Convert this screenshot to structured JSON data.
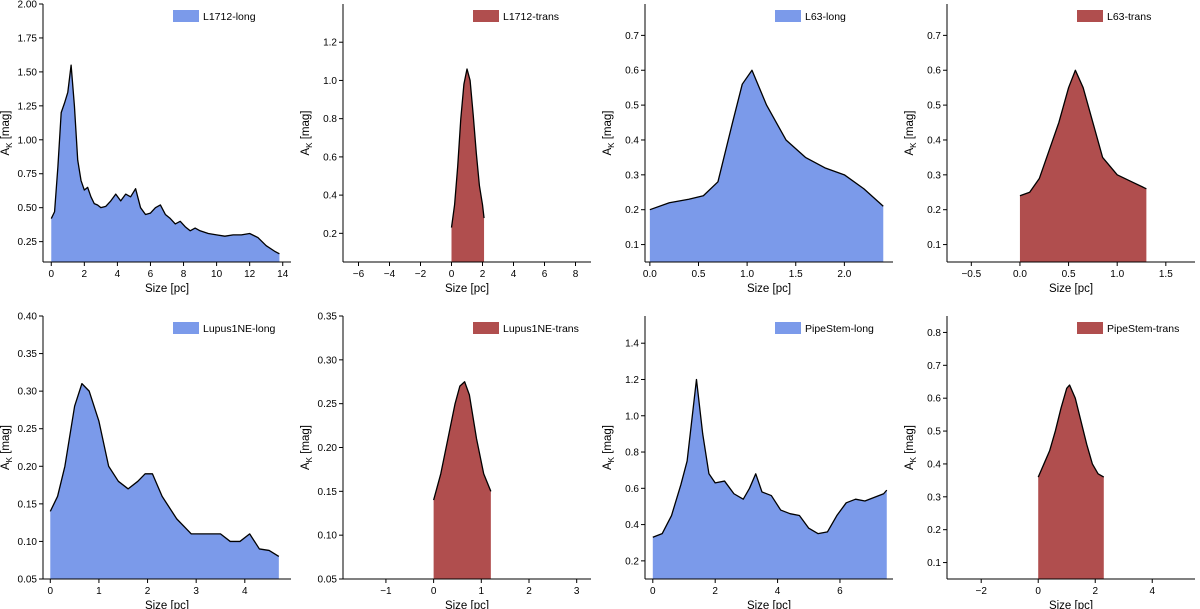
{
  "colors": {
    "long": "#7b9aea",
    "trans": "#b04e4e",
    "outline": "#000000"
  },
  "chart_data": [
    {
      "type": "area",
      "legend": "L1712-long",
      "color": "#7b9aea",
      "legend_position": "top-right",
      "xlabel": "Size [pc]",
      "ylabel_main": "A",
      "ylabel_sub": "K",
      "ylabel_unit": " [mag]",
      "xlim": [
        -0.5,
        14.5
      ],
      "ylim": [
        0.1,
        2.0
      ],
      "xticks": [
        0,
        2,
        4,
        6,
        8,
        10,
        12,
        14
      ],
      "xtick_labels": [
        "0",
        "2",
        "4",
        "6",
        "8",
        "10",
        "12",
        "14"
      ],
      "yticks": [
        0.25,
        0.5,
        0.75,
        1.0,
        1.25,
        1.5,
        1.75,
        2.0
      ],
      "ytick_labels": [
        "0.25",
        "0.50",
        "0.75",
        "1.00",
        "1.25",
        "1.50",
        "1.75",
        "2.00"
      ],
      "x": [
        0,
        0.2,
        0.4,
        0.6,
        0.8,
        1.0,
        1.2,
        1.4,
        1.6,
        1.8,
        2.0,
        2.2,
        2.4,
        2.6,
        2.8,
        3.0,
        3.3,
        3.6,
        3.9,
        4.2,
        4.5,
        4.8,
        5.1,
        5.4,
        5.7,
        6.0,
        6.3,
        6.6,
        6.9,
        7.2,
        7.5,
        7.8,
        8.1,
        8.4,
        8.7,
        9.0,
        9.5,
        10.0,
        10.5,
        11.0,
        11.5,
        12.0,
        12.5,
        13.0,
        13.5,
        13.8
      ],
      "y": [
        0.42,
        0.47,
        0.8,
        1.2,
        1.27,
        1.35,
        1.55,
        1.25,
        0.85,
        0.7,
        0.63,
        0.65,
        0.58,
        0.53,
        0.52,
        0.5,
        0.51,
        0.55,
        0.6,
        0.55,
        0.6,
        0.58,
        0.64,
        0.5,
        0.45,
        0.46,
        0.5,
        0.52,
        0.45,
        0.42,
        0.38,
        0.4,
        0.36,
        0.33,
        0.35,
        0.33,
        0.31,
        0.3,
        0.29,
        0.3,
        0.3,
        0.31,
        0.28,
        0.22,
        0.18,
        0.16
      ]
    },
    {
      "type": "area",
      "legend": "L1712-trans",
      "color": "#b04e4e",
      "legend_position": "top-right",
      "xlabel": "Size [pc]",
      "ylabel_main": "A",
      "ylabel_sub": "K",
      "ylabel_unit": " [mag]",
      "xlim": [
        -7,
        9
      ],
      "ylim": [
        0.05,
        1.4
      ],
      "xticks": [
        -6,
        -4,
        -2,
        0,
        2,
        4,
        6,
        8
      ],
      "xtick_labels": [
        "−6",
        "−4",
        "−2",
        "0",
        "2",
        "4",
        "6",
        "8"
      ],
      "yticks": [
        0.2,
        0.4,
        0.6,
        0.8,
        1.0,
        1.2
      ],
      "ytick_labels": [
        "0.2",
        "0.4",
        "0.6",
        "0.8",
        "1.0",
        "1.2"
      ],
      "x": [
        0,
        0.2,
        0.4,
        0.6,
        0.8,
        1.0,
        1.2,
        1.4,
        1.6,
        1.8,
        2.0,
        2.1
      ],
      "y": [
        0.23,
        0.35,
        0.55,
        0.8,
        0.98,
        1.06,
        1.0,
        0.82,
        0.62,
        0.45,
        0.35,
        0.28
      ]
    },
    {
      "type": "area",
      "legend": "L63-long",
      "color": "#7b9aea",
      "legend_position": "top-right",
      "xlabel": "Size [pc]",
      "ylabel_main": "A",
      "ylabel_sub": "K",
      "ylabel_unit": " [mag]",
      "xlim": [
        -0.05,
        2.5
      ],
      "ylim": [
        0.05,
        0.79
      ],
      "xticks": [
        0.0,
        0.5,
        1.0,
        1.5,
        2.0
      ],
      "xtick_labels": [
        "0.0",
        "0.5",
        "1.0",
        "1.5",
        "2.0"
      ],
      "yticks": [
        0.1,
        0.2,
        0.3,
        0.4,
        0.5,
        0.6,
        0.7
      ],
      "ytick_labels": [
        "0.1",
        "0.2",
        "0.3",
        "0.4",
        "0.5",
        "0.6",
        "0.7"
      ],
      "x": [
        0,
        0.2,
        0.4,
        0.55,
        0.7,
        0.85,
        0.95,
        1.05,
        1.2,
        1.4,
        1.6,
        1.8,
        2.0,
        2.2,
        2.4
      ],
      "y": [
        0.2,
        0.22,
        0.23,
        0.24,
        0.28,
        0.45,
        0.56,
        0.6,
        0.5,
        0.4,
        0.35,
        0.32,
        0.3,
        0.26,
        0.21
      ]
    },
    {
      "type": "area",
      "legend": "L63-trans",
      "color": "#b04e4e",
      "legend_position": "top-right",
      "xlabel": "Size [pc]",
      "ylabel_main": "A",
      "ylabel_sub": "K",
      "ylabel_unit": " [mag]",
      "xlim": [
        -0.75,
        1.8
      ],
      "ylim": [
        0.05,
        0.79
      ],
      "xticks": [
        -0.5,
        0.0,
        0.5,
        1.0,
        1.5
      ],
      "xtick_labels": [
        "−0.5",
        "0.0",
        "0.5",
        "1.0",
        "1.5"
      ],
      "yticks": [
        0.1,
        0.2,
        0.3,
        0.4,
        0.5,
        0.6,
        0.7
      ],
      "ytick_labels": [
        "0.1",
        "0.2",
        "0.3",
        "0.4",
        "0.5",
        "0.6",
        "0.7"
      ],
      "x": [
        0,
        0.1,
        0.2,
        0.3,
        0.4,
        0.5,
        0.57,
        0.65,
        0.75,
        0.85,
        1.0,
        1.15,
        1.3
      ],
      "y": [
        0.24,
        0.25,
        0.29,
        0.37,
        0.45,
        0.55,
        0.6,
        0.55,
        0.45,
        0.35,
        0.3,
        0.28,
        0.26
      ]
    },
    {
      "type": "area",
      "legend": "Lupus1NE-long",
      "color": "#7b9aea",
      "legend_position": "top-right",
      "xlabel": "Size [pc]",
      "ylabel_main": "A",
      "ylabel_sub": "K",
      "ylabel_unit": " [mag]",
      "xlim": [
        -0.15,
        4.95
      ],
      "ylim": [
        0.05,
        0.4
      ],
      "xticks": [
        0,
        1,
        2,
        3,
        4
      ],
      "xtick_labels": [
        "0",
        "1",
        "2",
        "3",
        "4"
      ],
      "yticks": [
        0.05,
        0.1,
        0.15,
        0.2,
        0.25,
        0.3,
        0.35,
        0.4
      ],
      "ytick_labels": [
        "0.05",
        "0.10",
        "0.15",
        "0.20",
        "0.25",
        "0.30",
        "0.35",
        "0.40"
      ],
      "x": [
        0,
        0.15,
        0.3,
        0.5,
        0.65,
        0.8,
        1.0,
        1.2,
        1.4,
        1.6,
        1.8,
        1.95,
        2.1,
        2.3,
        2.6,
        2.9,
        3.2,
        3.5,
        3.7,
        3.9,
        4.1,
        4.3,
        4.5,
        4.7
      ],
      "y": [
        0.14,
        0.16,
        0.2,
        0.28,
        0.31,
        0.3,
        0.26,
        0.2,
        0.18,
        0.17,
        0.18,
        0.19,
        0.19,
        0.16,
        0.13,
        0.11,
        0.11,
        0.11,
        0.1,
        0.1,
        0.11,
        0.09,
        0.088,
        0.08
      ]
    },
    {
      "type": "area",
      "legend": "Lupus1NE-trans",
      "color": "#b04e4e",
      "legend_position": "top-right",
      "xlabel": "Size [pc]",
      "ylabel_main": "A",
      "ylabel_sub": "K",
      "ylabel_unit": " [mag]",
      "xlim": [
        -1.9,
        3.3
      ],
      "ylim": [
        0.05,
        0.35
      ],
      "xticks": [
        -1,
        0,
        1,
        2,
        3
      ],
      "xtick_labels": [
        "−1",
        "0",
        "1",
        "2",
        "3"
      ],
      "yticks": [
        0.05,
        0.1,
        0.15,
        0.2,
        0.25,
        0.3,
        0.35
      ],
      "ytick_labels": [
        "0.05",
        "0.10",
        "0.15",
        "0.20",
        "0.25",
        "0.30",
        "0.35"
      ],
      "x": [
        0,
        0.15,
        0.3,
        0.45,
        0.55,
        0.65,
        0.75,
        0.9,
        1.05,
        1.2
      ],
      "y": [
        0.14,
        0.17,
        0.21,
        0.25,
        0.27,
        0.275,
        0.26,
        0.21,
        0.17,
        0.15
      ]
    },
    {
      "type": "area",
      "legend": "PipeStem-long",
      "color": "#7b9aea",
      "legend_position": "top-right",
      "xlabel": "Size [pc]",
      "ylabel_main": "A",
      "ylabel_sub": "K",
      "ylabel_unit": " [mag]",
      "xlim": [
        -0.25,
        7.7
      ],
      "ylim": [
        0.1,
        1.55
      ],
      "xticks": [
        0,
        2,
        4,
        6
      ],
      "xtick_labels": [
        "0",
        "2",
        "4",
        "6"
      ],
      "yticks": [
        0.2,
        0.4,
        0.6,
        0.8,
        1.0,
        1.2,
        1.4
      ],
      "ytick_labels": [
        "0.2",
        "0.4",
        "0.6",
        "0.8",
        "1.0",
        "1.2",
        "1.4"
      ],
      "x": [
        0,
        0.3,
        0.6,
        0.9,
        1.1,
        1.3,
        1.4,
        1.6,
        1.8,
        2.0,
        2.3,
        2.6,
        2.9,
        3.1,
        3.3,
        3.5,
        3.8,
        4.1,
        4.4,
        4.7,
        5.0,
        5.3,
        5.6,
        5.9,
        6.2,
        6.5,
        6.8,
        7.1,
        7.4,
        7.5
      ],
      "y": [
        0.33,
        0.35,
        0.45,
        0.62,
        0.75,
        1.05,
        1.2,
        0.9,
        0.68,
        0.63,
        0.64,
        0.57,
        0.54,
        0.6,
        0.68,
        0.58,
        0.56,
        0.48,
        0.46,
        0.45,
        0.38,
        0.35,
        0.36,
        0.45,
        0.52,
        0.54,
        0.53,
        0.55,
        0.57,
        0.59
      ]
    },
    {
      "type": "area",
      "legend": "PipeStem-trans",
      "color": "#b04e4e",
      "legend_position": "top-right",
      "xlabel": "Size [pc]",
      "ylabel_main": "A",
      "ylabel_sub": "K",
      "ylabel_unit": " [mag]",
      "xlim": [
        -3.2,
        5.5
      ],
      "ylim": [
        0.05,
        0.85
      ],
      "xticks": [
        -2,
        0,
        2,
        4
      ],
      "xtick_labels": [
        "−2",
        "0",
        "2",
        "4"
      ],
      "yticks": [
        0.1,
        0.2,
        0.3,
        0.4,
        0.5,
        0.6,
        0.7,
        0.8
      ],
      "ytick_labels": [
        "0.1",
        "0.2",
        "0.3",
        "0.4",
        "0.5",
        "0.6",
        "0.7",
        "0.8"
      ],
      "x": [
        0,
        0.2,
        0.4,
        0.6,
        0.8,
        1.0,
        1.1,
        1.3,
        1.5,
        1.7,
        1.9,
        2.1,
        2.3
      ],
      "y": [
        0.36,
        0.4,
        0.44,
        0.5,
        0.57,
        0.63,
        0.64,
        0.6,
        0.53,
        0.46,
        0.4,
        0.37,
        0.36
      ]
    }
  ]
}
